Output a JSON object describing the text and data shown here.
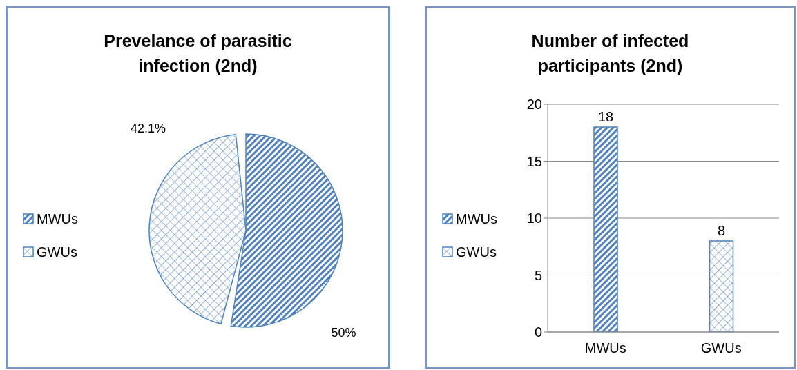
{
  "chart_data": [
    {
      "type": "pie",
      "title": "Prevelance of parasitic infection (2nd)",
      "categories": [
        "MWUs",
        "GWUs"
      ],
      "values": [
        50,
        42.1
      ],
      "colors": [
        "#4f81bd",
        "#4f81bd"
      ],
      "value_labels": [
        "50%",
        "42.1%"
      ],
      "legend": "left"
    },
    {
      "type": "bar",
      "title": "Number of infected participants (2nd)",
      "categories": [
        "MWUs",
        "GWUs"
      ],
      "series": [
        {
          "name": "MWUs",
          "color": "#4f81bd",
          "values": [
            18,
            null
          ]
        },
        {
          "name": "GWUs",
          "color": "#4f81bd",
          "values": [
            null,
            8
          ]
        }
      ],
      "ylim": [
        0,
        20
      ],
      "yticks": [
        0,
        5,
        10,
        15,
        20
      ],
      "grid": "y",
      "data_labels": true,
      "legend": "left"
    }
  ]
}
